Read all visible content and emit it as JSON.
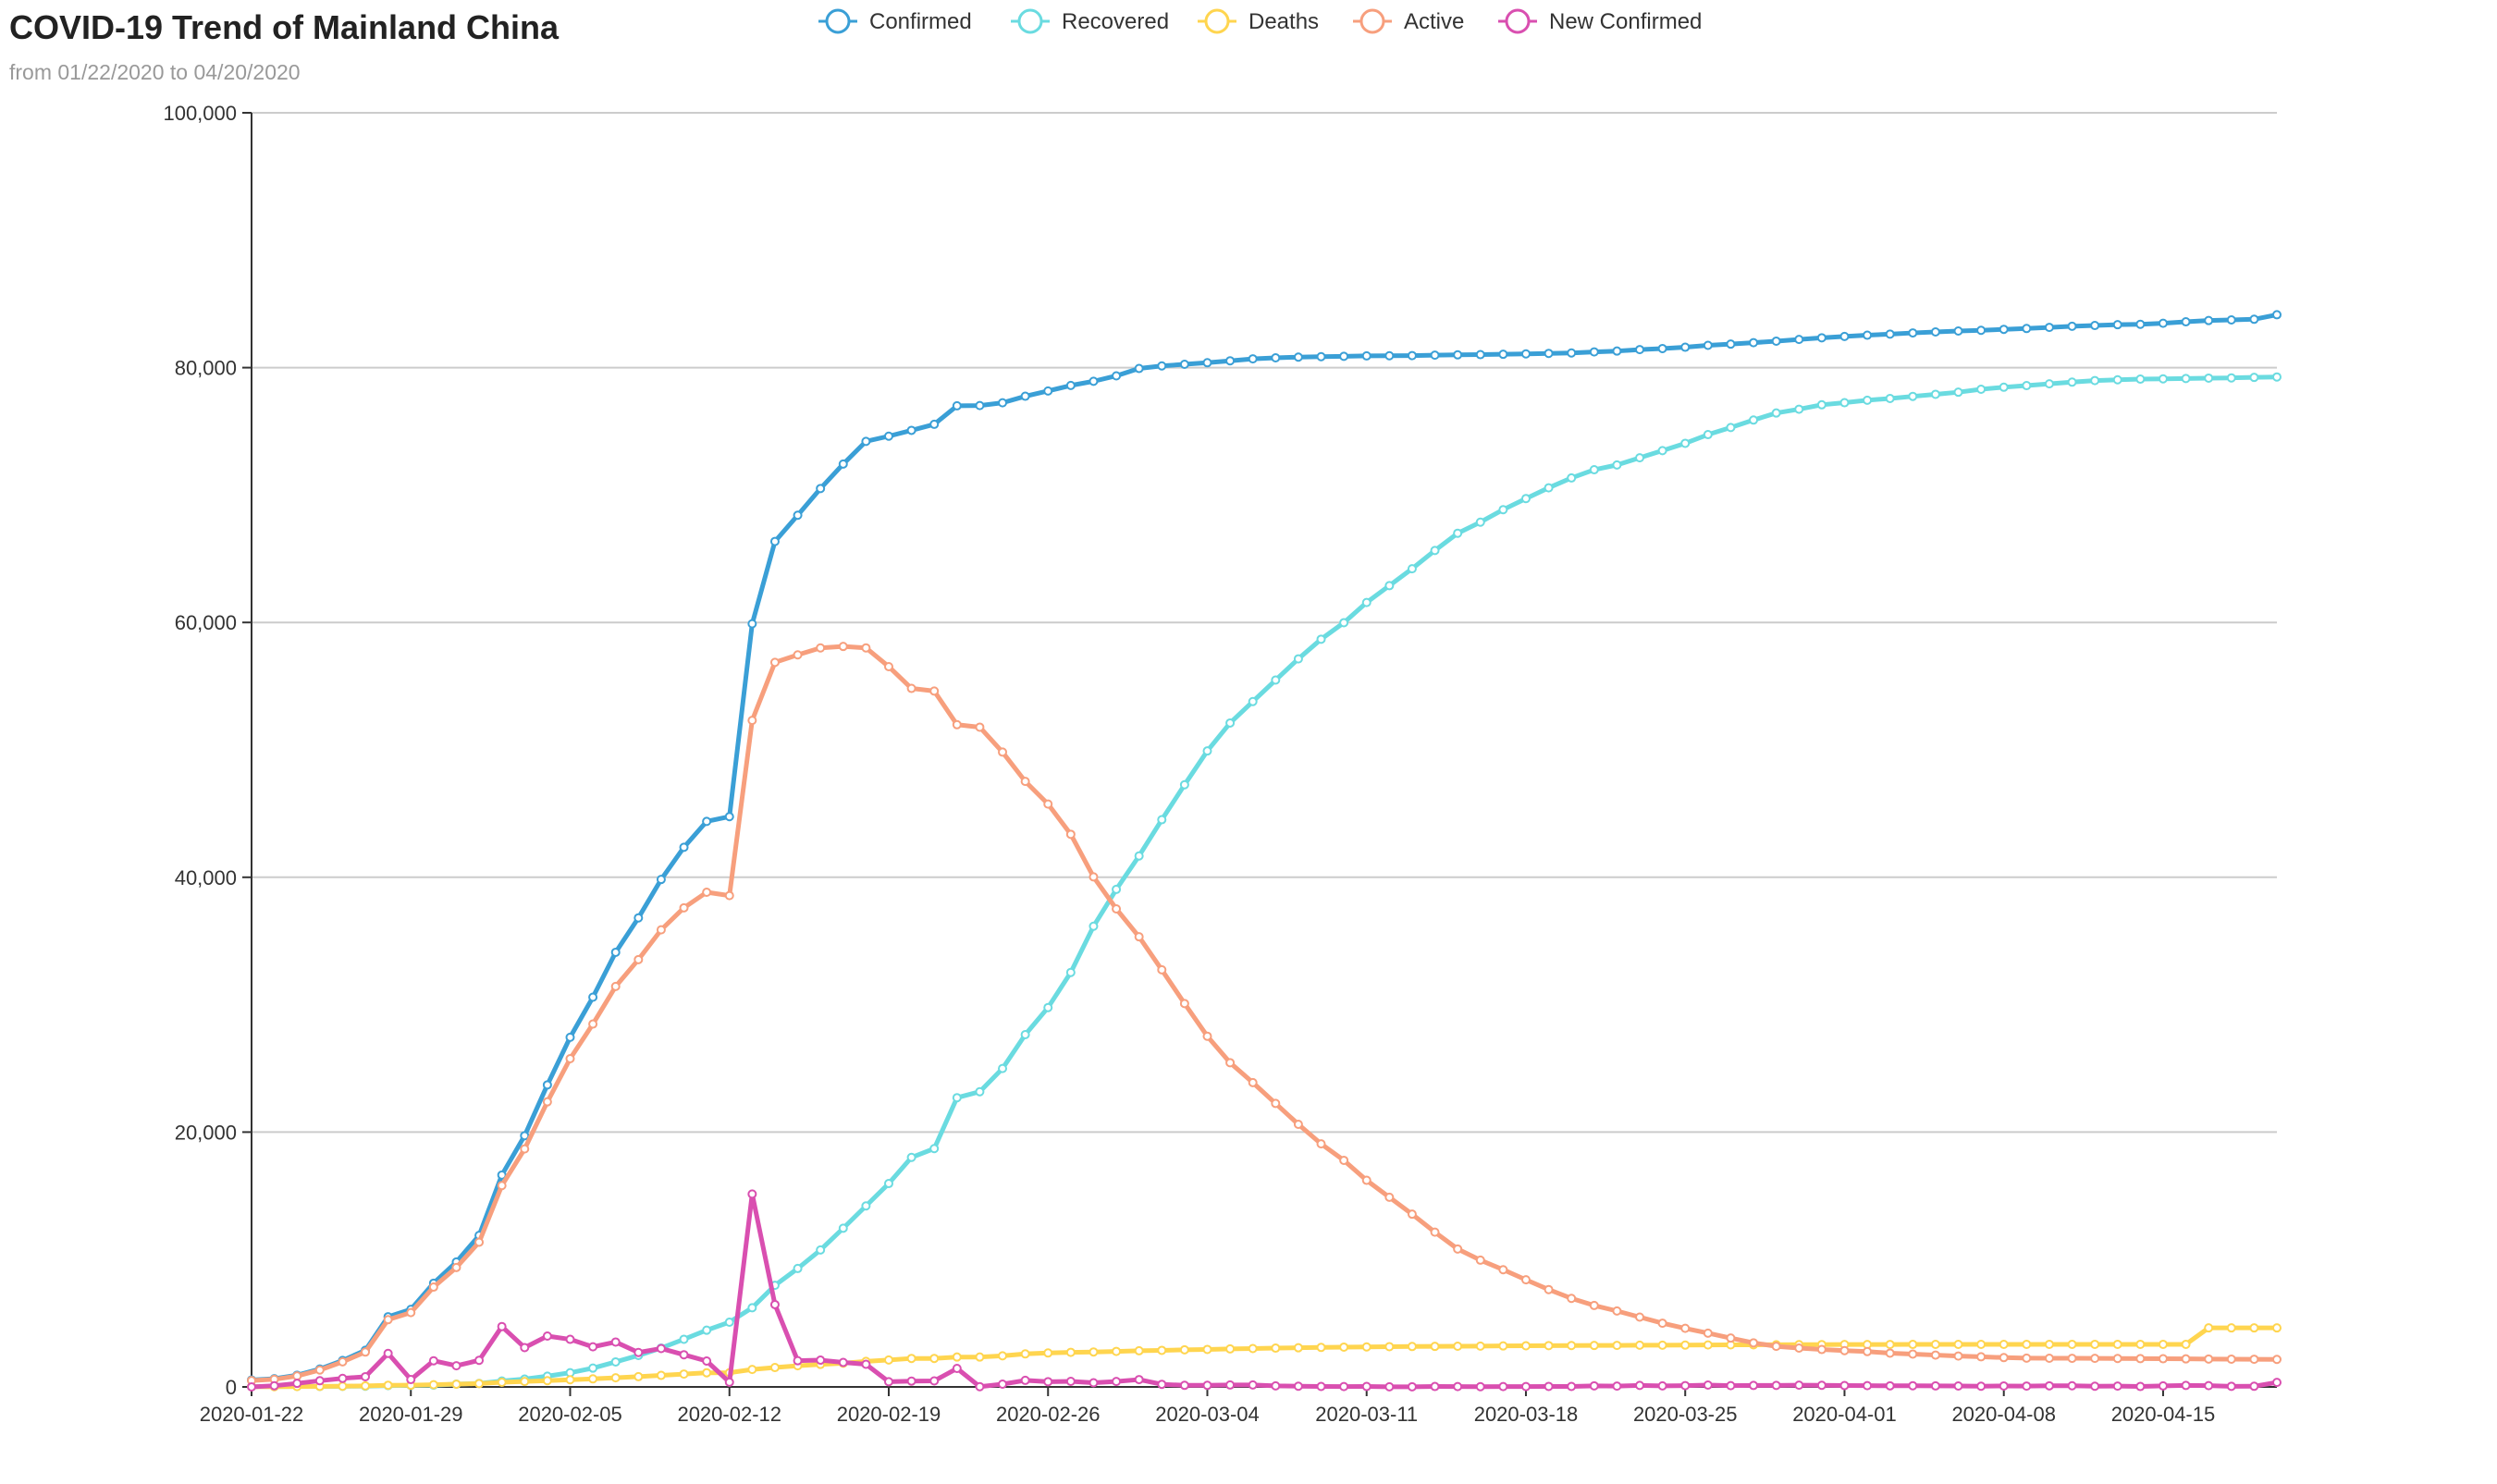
{
  "chart_data": {
    "type": "line",
    "title": "COVID-19 Trend of Mainland China",
    "subtitle": "from 01/22/2020 to 04/20/2020",
    "ylim": [
      0,
      100000
    ],
    "yticks": [
      "0",
      "20,000",
      "40,000",
      "60,000",
      "80,000",
      "100,000"
    ],
    "xticks": [
      "2020-01-22",
      "2020-01-29",
      "2020-02-05",
      "2020-02-12",
      "2020-02-19",
      "2020-02-26",
      "2020-03-04",
      "2020-03-11",
      "2020-03-18",
      "2020-03-25",
      "2020-04-01",
      "2020-04-08",
      "2020-04-15"
    ],
    "grid": "horizontal",
    "legend_position": "top",
    "x_start": "2020-01-22",
    "x_end": "2020-04-20",
    "series": [
      {
        "name": "Confirmed",
        "color": "#3a9fd6",
        "values": [
          548,
          643,
          920,
          1406,
          2075,
          2877,
          5509,
          6087,
          8141,
          9802,
          11891,
          16630,
          19716,
          23707,
          27440,
          30587,
          34110,
          36814,
          39829,
          42354,
          44386,
          44759,
          59895,
          66358,
          68413,
          70513,
          72434,
          74211,
          74619,
          75077,
          75550,
          77001,
          77022,
          77241,
          77754,
          78166,
          78600,
          78928,
          79356,
          79932,
          80136,
          80261,
          80386,
          80537,
          80690,
          80770,
          80823,
          80860,
          80887,
          80921,
          80932,
          80945,
          80977,
          81003,
          81021,
          81048,
          81077,
          81116,
          81151,
          81235,
          81300,
          81416,
          81498,
          81600,
          81747,
          81846,
          81960,
          82078,
          82213,
          82341,
          82447,
          82545,
          82631,
          82724,
          82802,
          82875,
          82930,
          83005,
          83071,
          83157,
          83249,
          83305,
          83369,
          83403,
          83482,
          83597,
          83696,
          83745,
          83797,
          84149
        ]
      },
      {
        "name": "Recovered",
        "color": "#6adbe0",
        "values": [
          28,
          30,
          36,
          39,
          49,
          58,
          101,
          120,
          135,
          214,
          275,
          463,
          614,
          843,
          1115,
          1476,
          1963,
          2470,
          3050,
          3741,
          4451,
          5079,
          6213,
          7973,
          9294,
          10748,
          12455,
          14206,
          15962,
          18014,
          18704,
          22699,
          23170,
          24990,
          27650,
          29775,
          32531,
          36157,
          39049,
          41675,
          44518,
          47260,
          49914,
          52109,
          53793,
          55477,
          57143,
          58684,
          59982,
          61567,
          62887,
          64216,
          65649,
          67003,
          67871,
          68854,
          69724,
          70568,
          71340,
          71985,
          72360,
          72923,
          73487,
          74059,
          74743,
          75301,
          75885,
          76438,
          76737,
          77082,
          77246,
          77439,
          77579,
          77744,
          77906,
          78071,
          78302,
          78461,
          78589,
          78730,
          78861,
          78985,
          79044,
          79097,
          79120,
          79146,
          79175,
          79195,
          79234,
          79266
        ]
      },
      {
        "name": "Deaths",
        "color": "#ffd54f",
        "values": [
          17,
          18,
          26,
          42,
          56,
          82,
          131,
          133,
          171,
          213,
          259,
          361,
          425,
          490,
          562,
          632,
          717,
          804,
          904,
          1011,
          1111,
          1116,
          1368,
          1520,
          1662,
          1765,
          1863,
          2002,
          2114,
          2236,
          2236,
          2345,
          2345,
          2442,
          2592,
          2663,
          2715,
          2744,
          2788,
          2835,
          2870,
          2912,
          2943,
          2981,
          3012,
          3044,
          3072,
          3100,
          3123,
          3139,
          3161,
          3172,
          3180,
          3193,
          3203,
          3217,
          3230,
          3241,
          3249,
          3253,
          3259,
          3274,
          3274,
          3281,
          3292,
          3300,
          3304,
          3312,
          3316,
          3322,
          3326,
          3330,
          3333,
          3335,
          3337,
          3339,
          3340,
          3340,
          3341,
          3341,
          3342,
          3342,
          3342,
          3342,
          3342,
          3342,
          4632,
          4632,
          4632,
          4632
        ]
      },
      {
        "name": "Active",
        "color": "#f79f7d",
        "values": [
          503,
          595,
          858,
          1325,
          1970,
          2737,
          5277,
          5834,
          7835,
          9375,
          11357,
          15806,
          18677,
          22374,
          25763,
          28479,
          31430,
          33540,
          35875,
          37602,
          38824,
          38564,
          52314,
          56865,
          57457,
          58000,
          58116,
          58003,
          56533,
          54823,
          54614,
          51975,
          51781,
          49824,
          47525,
          45746,
          43371,
          40028,
          37519,
          35329,
          32736,
          30089,
          27524,
          25447,
          23885,
          22249,
          20608,
          19076,
          17782,
          16215,
          14884,
          13557,
          12148,
          10826,
          9947,
          9200,
          8408,
          7640,
          6950,
          6393,
          5960,
          5480,
          5001,
          4598,
          4219,
          3835,
          3459,
          3186,
          3046,
          2936,
          2852,
          2773,
          2651,
          2580,
          2499,
          2425,
          2365,
          2300,
          2260,
          2250,
          2245,
          2240,
          2230,
          2220,
          2210,
          2200,
          2190,
          2180,
          2170,
          2160
        ]
      },
      {
        "name": "New Confirmed",
        "color": "#d94fb0",
        "values": [
          0,
          95,
          277,
          486,
          669,
          802,
          2632,
          578,
          2054,
          1661,
          2089,
          4739,
          3086,
          3991,
          3733,
          3147,
          3523,
          2704,
          3015,
          2525,
          2032,
          373,
          15136,
          6463,
          2055,
          2100,
          1921,
          1777,
          408,
          458,
          473,
          1451,
          21,
          219,
          513,
          412,
          434,
          328,
          428,
          576,
          204,
          125,
          125,
          151,
          153,
          80,
          53,
          37,
          27,
          34,
          11,
          13,
          32,
          26,
          18,
          27,
          29,
          39,
          35,
          84,
          65,
          116,
          82,
          102,
          147,
          99,
          114,
          118,
          135,
          128,
          106,
          98,
          86,
          93,
          78,
          73,
          55,
          75,
          66,
          86,
          92,
          56,
          64,
          34,
          79,
          115,
          99,
          49,
          52,
          352
        ]
      }
    ]
  }
}
